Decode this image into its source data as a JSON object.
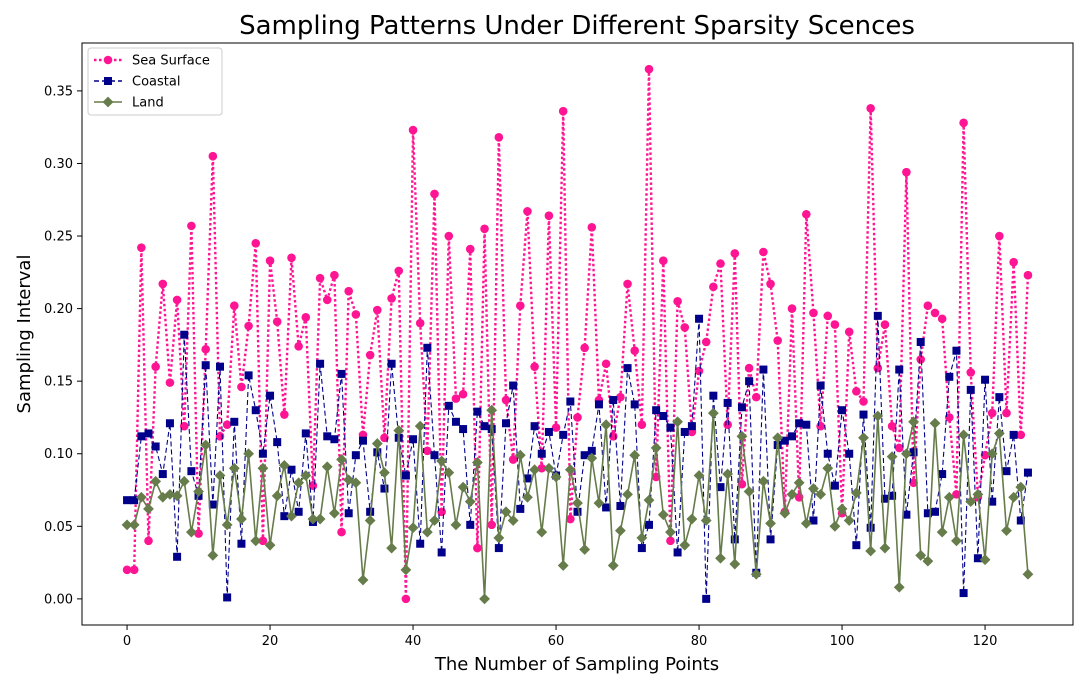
{
  "chart_data": {
    "type": "line",
    "title": "Sampling Patterns Under Different Sparsity Scences",
    "xlabel": "The Number of Sampling Points",
    "ylabel": "Sampling Interval",
    "xlim": [
      -6.3,
      132.3
    ],
    "ylim": [
      -0.018,
      0.383
    ],
    "xticks": [
      0,
      20,
      40,
      60,
      80,
      100,
      120
    ],
    "yticks": [
      0.0,
      0.05,
      0.1,
      0.15,
      0.2,
      0.25,
      0.3,
      0.35
    ],
    "ytick_labels": [
      "0.00",
      "0.05",
      "0.10",
      "0.15",
      "0.20",
      "0.25",
      "0.30",
      "0.35"
    ],
    "grid": false,
    "legend_position": "top-left",
    "series": [
      {
        "name": "Sea Surface",
        "color": "#ff1493",
        "line_style": "dotted",
        "marker": "circle",
        "x": [
          0,
          1,
          2,
          3,
          4,
          5,
          6,
          7,
          8,
          9,
          10,
          11,
          12,
          13,
          14,
          15,
          16,
          17,
          18,
          19,
          20,
          21,
          22,
          23,
          24,
          25,
          26,
          27,
          28,
          29,
          30,
          31,
          32,
          33,
          34,
          35,
          36,
          37,
          38,
          39,
          40,
          41,
          42,
          43,
          44,
          45,
          46,
          47,
          48,
          49,
          50,
          51,
          52,
          53,
          54,
          55,
          56,
          57,
          58,
          59,
          60,
          61,
          62,
          63,
          64,
          65,
          66,
          67,
          68,
          69,
          70,
          71,
          72,
          73,
          74,
          75,
          76,
          77,
          78,
          79,
          80,
          81,
          82,
          83,
          84,
          85,
          86,
          87,
          88,
          89,
          90,
          91,
          92,
          93,
          94,
          95,
          96,
          97,
          98,
          99,
          100,
          101,
          102,
          103,
          104,
          105,
          106,
          107,
          108,
          109,
          110,
          111,
          112,
          113,
          114,
          115,
          116,
          117,
          118,
          119,
          120,
          121,
          122,
          123,
          124,
          125,
          126
        ],
        "values": [
          0.02,
          0.02,
          0.242,
          0.04,
          0.16,
          0.217,
          0.149,
          0.206,
          0.119,
          0.257,
          0.045,
          0.172,
          0.305,
          0.112,
          0.12,
          0.202,
          0.146,
          0.188,
          0.245,
          0.04,
          0.233,
          0.191,
          0.127,
          0.235,
          0.174,
          0.194,
          0.078,
          0.221,
          0.206,
          0.223,
          0.046,
          0.212,
          0.196,
          0.113,
          0.168,
          0.199,
          0.111,
          0.207,
          0.226,
          0.0,
          0.323,
          0.19,
          0.102,
          0.279,
          0.06,
          0.25,
          0.138,
          0.141,
          0.241,
          0.035,
          0.255,
          0.051,
          0.318,
          0.137,
          0.096,
          0.202,
          0.267,
          0.16,
          0.09,
          0.264,
          0.118,
          0.336,
          0.055,
          0.125,
          0.173,
          0.256,
          0.137,
          0.162,
          0.112,
          0.139,
          0.217,
          0.171,
          0.12,
          0.365,
          0.084,
          0.233,
          0.04,
          0.205,
          0.187,
          0.115,
          0.157,
          0.177,
          0.215,
          0.231,
          0.12,
          0.238,
          0.079,
          0.159,
          0.139,
          0.239,
          0.217,
          0.178,
          0.06,
          0.2,
          0.07,
          0.265,
          0.197,
          0.119,
          0.195,
          0.189,
          0.059,
          0.184,
          0.143,
          0.136,
          0.338,
          0.159,
          0.189,
          0.119,
          0.104,
          0.294,
          0.08,
          0.165,
          0.202,
          0.197,
          0.193,
          0.125,
          0.072,
          0.328,
          0.156,
          0.07,
          0.099,
          0.128,
          0.25,
          0.128,
          0.232,
          0.113,
          0.223
        ]
      },
      {
        "name": "Coastal",
        "color": "#00008b",
        "line_style": "dashed",
        "marker": "square",
        "x": [
          0,
          1,
          2,
          3,
          4,
          5,
          6,
          7,
          8,
          9,
          10,
          11,
          12,
          13,
          14,
          15,
          16,
          17,
          18,
          19,
          20,
          21,
          22,
          23,
          24,
          25,
          26,
          27,
          28,
          29,
          30,
          31,
          32,
          33,
          34,
          35,
          36,
          37,
          38,
          39,
          40,
          41,
          42,
          43,
          44,
          45,
          46,
          47,
          48,
          49,
          50,
          51,
          52,
          53,
          54,
          55,
          56,
          57,
          58,
          59,
          60,
          61,
          62,
          63,
          64,
          65,
          66,
          67,
          68,
          69,
          70,
          71,
          72,
          73,
          74,
          75,
          76,
          77,
          78,
          79,
          80,
          81,
          82,
          83,
          84,
          85,
          86,
          87,
          88,
          89,
          90,
          91,
          92,
          93,
          94,
          95,
          96,
          97,
          98,
          99,
          100,
          101,
          102,
          103,
          104,
          105,
          106,
          107,
          108,
          109,
          110,
          111,
          112,
          113,
          114,
          115,
          116,
          117,
          118,
          119,
          120,
          121,
          122,
          123,
          124,
          125,
          126
        ],
        "values": [
          0.068,
          0.068,
          0.112,
          0.114,
          0.105,
          0.086,
          0.121,
          0.029,
          0.182,
          0.088,
          0.071,
          0.161,
          0.065,
          0.16,
          0.001,
          0.122,
          0.038,
          0.154,
          0.13,
          0.1,
          0.14,
          0.108,
          0.057,
          0.089,
          0.06,
          0.114,
          0.053,
          0.162,
          0.112,
          0.11,
          0.155,
          0.059,
          0.099,
          0.109,
          0.06,
          0.101,
          0.076,
          0.162,
          0.111,
          0.085,
          0.11,
          0.038,
          0.173,
          0.099,
          0.032,
          0.133,
          0.122,
          0.117,
          0.051,
          0.129,
          0.119,
          0.117,
          0.035,
          0.121,
          0.147,
          0.062,
          0.083,
          0.119,
          0.1,
          0.115,
          0.085,
          0.113,
          0.136,
          0.06,
          0.099,
          0.102,
          0.134,
          0.063,
          0.137,
          0.064,
          0.159,
          0.134,
          0.035,
          0.051,
          0.13,
          0.126,
          0.118,
          0.032,
          0.115,
          0.119,
          0.193,
          0.0,
          0.14,
          0.077,
          0.135,
          0.041,
          0.132,
          0.15,
          0.018,
          0.158,
          0.041,
          0.106,
          0.109,
          0.112,
          0.121,
          0.12,
          0.054,
          0.147,
          0.1,
          0.078,
          0.13,
          0.1,
          0.037,
          0.127,
          0.049,
          0.195,
          0.069,
          0.071,
          0.158,
          0.058,
          0.101,
          0.177,
          0.059,
          0.06,
          0.086,
          0.153,
          0.171,
          0.004,
          0.144,
          0.028,
          0.151,
          0.067,
          0.139,
          0.088,
          0.113,
          0.054,
          0.087
        ]
      },
      {
        "name": "Land",
        "color": "#667c4a",
        "line_style": "solid",
        "marker": "diamond",
        "x": [
          0,
          1,
          2,
          3,
          4,
          5,
          6,
          7,
          8,
          9,
          10,
          11,
          12,
          13,
          14,
          15,
          16,
          17,
          18,
          19,
          20,
          21,
          22,
          23,
          24,
          25,
          26,
          27,
          28,
          29,
          30,
          31,
          32,
          33,
          34,
          35,
          36,
          37,
          38,
          39,
          40,
          41,
          42,
          43,
          44,
          45,
          46,
          47,
          48,
          49,
          50,
          51,
          52,
          53,
          54,
          55,
          56,
          57,
          58,
          59,
          60,
          61,
          62,
          63,
          64,
          65,
          66,
          67,
          68,
          69,
          70,
          71,
          72,
          73,
          74,
          75,
          76,
          77,
          78,
          79,
          80,
          81,
          82,
          83,
          84,
          85,
          86,
          87,
          88,
          89,
          90,
          91,
          92,
          93,
          94,
          95,
          96,
          97,
          98,
          99,
          100,
          101,
          102,
          103,
          104,
          105,
          106,
          107,
          108,
          109,
          110,
          111,
          112,
          113,
          114,
          115,
          116,
          117,
          118,
          119,
          120,
          121,
          122,
          123,
          124,
          125,
          126
        ],
        "values": [
          0.051,
          0.051,
          0.07,
          0.062,
          0.081,
          0.07,
          0.072,
          0.071,
          0.081,
          0.046,
          0.074,
          0.106,
          0.03,
          0.085,
          0.051,
          0.09,
          0.055,
          0.1,
          0.04,
          0.09,
          0.037,
          0.071,
          0.092,
          0.057,
          0.08,
          0.085,
          0.055,
          0.055,
          0.091,
          0.059,
          0.096,
          0.082,
          0.08,
          0.013,
          0.054,
          0.107,
          0.087,
          0.035,
          0.116,
          0.02,
          0.049,
          0.119,
          0.046,
          0.054,
          0.095,
          0.087,
          0.051,
          0.077,
          0.067,
          0.094,
          0.0,
          0.13,
          0.042,
          0.06,
          0.054,
          0.099,
          0.07,
          0.089,
          0.046,
          0.09,
          0.084,
          0.023,
          0.089,
          0.066,
          0.034,
          0.097,
          0.066,
          0.12,
          0.023,
          0.047,
          0.072,
          0.099,
          0.042,
          0.068,
          0.104,
          0.058,
          0.046,
          0.122,
          0.037,
          0.055,
          0.085,
          0.054,
          0.128,
          0.028,
          0.086,
          0.024,
          0.112,
          0.074,
          0.017,
          0.081,
          0.052,
          0.111,
          0.059,
          0.072,
          0.08,
          0.052,
          0.076,
          0.072,
          0.09,
          0.05,
          0.062,
          0.054,
          0.073,
          0.111,
          0.033,
          0.126,
          0.035,
          0.098,
          0.008,
          0.1,
          0.122,
          0.03,
          0.026,
          0.121,
          0.046,
          0.07,
          0.04,
          0.113,
          0.067,
          0.072,
          0.027,
          0.1,
          0.114,
          0.047,
          0.07,
          0.077,
          0.017
        ]
      }
    ]
  }
}
